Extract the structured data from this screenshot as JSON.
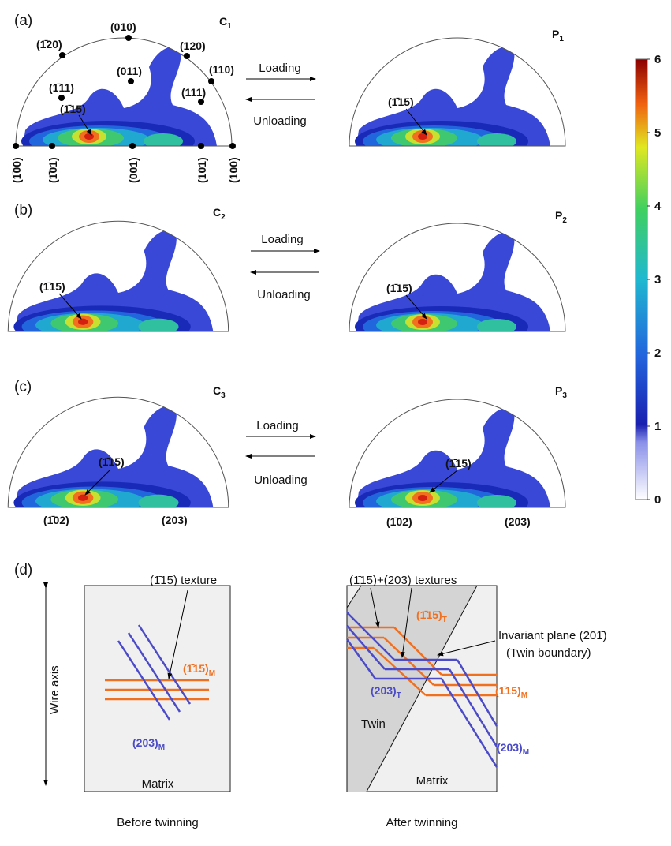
{
  "panels": [
    {
      "label": "(a)",
      "left_title": {
        "text": "C",
        "sub": "1"
      },
      "right_title": {
        "text": "P",
        "sub": "1"
      },
      "loading": "Loading",
      "unloading": "Unloading",
      "left_annotations": [
        "(010)",
        "(1̄20)",
        "(120)",
        "(011)",
        "(110)",
        "(1̄11)",
        "(111)",
        "(1̄15)"
      ],
      "bottom_labels": [
        "(1̄00)",
        "(1̄01)",
        "(001)",
        "(101)",
        "(100)"
      ],
      "right_annotations": [
        "(1̄15)"
      ]
    },
    {
      "label": "(b)",
      "left_title": {
        "text": "C",
        "sub": "2"
      },
      "right_title": {
        "text": "P",
        "sub": "2"
      },
      "loading": "Loading",
      "unloading": "Unloading",
      "left_annotations": [
        "(1̄15)"
      ],
      "right_annotations": [
        "(1̄15)"
      ]
    },
    {
      "label": "(c)",
      "left_title": {
        "text": "C",
        "sub": "3"
      },
      "right_title": {
        "text": "P",
        "sub": "3"
      },
      "loading": "Loading",
      "unloading": "Unloading",
      "left_annotations": [
        "(1̄15)",
        "(1̄02)",
        "(203)"
      ],
      "right_annotations": [
        "(1̄15)",
        "(1̄02)",
        "(203)"
      ]
    }
  ],
  "colorbar": {
    "ylim": [
      0,
      6
    ],
    "yticks": [
      0,
      1,
      2,
      3,
      4,
      5,
      6
    ]
  },
  "schematic": {
    "label": "(d)",
    "axis_label": "Wire axis",
    "before": {
      "texture": "(1̄15) texture",
      "plane_m": {
        "text": "(1̄15)",
        "sub": "M"
      },
      "plane_203m": {
        "text": "(203)",
        "sub": "M"
      },
      "region": "Matrix",
      "caption": "Before twinning"
    },
    "after": {
      "texture": "(1̄15)+(203) textures",
      "plane_t": {
        "text": "(1̄15)",
        "sub": "T"
      },
      "invariant": "Invariant plane (201̄)",
      "boundary": "(Twin boundary)",
      "plane_203t": {
        "text": "(203)",
        "sub": "T"
      },
      "plane_m": {
        "text": "(1̄15)",
        "sub": "M"
      },
      "plane_203m": {
        "text": "(203)",
        "sub": "M"
      },
      "twin": "Twin",
      "region": "Matrix",
      "caption": "After twinning"
    }
  }
}
